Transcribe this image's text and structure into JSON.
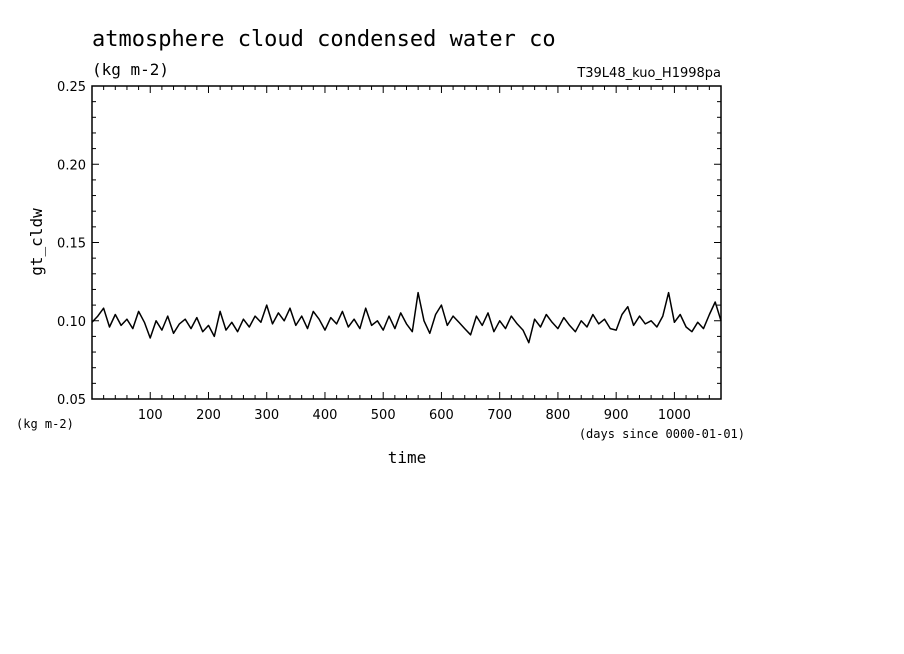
{
  "chart_data": {
    "type": "line",
    "title": "atmosphere cloud condensed water co",
    "subtitle": "(kg m-2)",
    "run_label": "T39L48_kuo_H1998pa",
    "xlabel": "time",
    "x_units": "(days since 0000-01-01)",
    "ylabel": "gt_cldw",
    "y_units": "(kg m-2)",
    "xlim": [
      0,
      1080
    ],
    "ylim": [
      0.05,
      0.25
    ],
    "x_ticks": [
      100,
      200,
      300,
      400,
      500,
      600,
      700,
      800,
      900,
      1000
    ],
    "x_tick_labels": [
      "100",
      "200",
      "300",
      "400",
      "500",
      "600",
      "700",
      "800",
      "900",
      "1000"
    ],
    "y_ticks": [
      0.05,
      0.1,
      0.15,
      0.2,
      0.25
    ],
    "y_tick_labels": [
      "0.05",
      "0.10",
      "0.15",
      "0.20",
      "0.25"
    ],
    "grid": false,
    "line_color": "#000000",
    "series": [
      {
        "x": [
          0,
          10,
          20,
          30,
          40,
          50,
          60,
          70,
          80,
          90,
          100,
          110,
          120,
          130,
          140,
          150,
          160,
          170,
          180,
          190,
          200,
          210,
          220,
          230,
          240,
          250,
          260,
          270,
          280,
          290,
          300,
          310,
          320,
          330,
          340,
          350,
          360,
          370,
          380,
          390,
          400,
          410,
          420,
          430,
          440,
          450,
          460,
          470,
          480,
          490,
          500,
          510,
          520,
          530,
          540,
          550,
          560,
          570,
          580,
          590,
          600,
          610,
          620,
          630,
          640,
          650,
          660,
          670,
          680,
          690,
          700,
          710,
          720,
          730,
          740,
          750,
          760,
          770,
          780,
          790,
          800,
          810,
          820,
          830,
          840,
          850,
          860,
          870,
          880,
          890,
          900,
          910,
          920,
          930,
          940,
          950,
          960,
          970,
          980,
          990,
          1000,
          1010,
          1020,
          1030,
          1040,
          1050,
          1060,
          1070,
          1080
        ],
        "values": [
          0.099,
          0.103,
          0.108,
          0.096,
          0.104,
          0.097,
          0.101,
          0.095,
          0.106,
          0.099,
          0.089,
          0.1,
          0.094,
          0.103,
          0.092,
          0.098,
          0.101,
          0.095,
          0.102,
          0.093,
          0.097,
          0.09,
          0.106,
          0.094,
          0.099,
          0.093,
          0.101,
          0.096,
          0.103,
          0.099,
          0.11,
          0.098,
          0.105,
          0.1,
          0.108,
          0.097,
          0.103,
          0.095,
          0.106,
          0.101,
          0.094,
          0.102,
          0.098,
          0.106,
          0.096,
          0.101,
          0.095,
          0.108,
          0.097,
          0.1,
          0.094,
          0.103,
          0.095,
          0.105,
          0.098,
          0.093,
          0.118,
          0.1,
          0.092,
          0.104,
          0.11,
          0.097,
          0.103,
          0.099,
          0.095,
          0.091,
          0.103,
          0.097,
          0.105,
          0.093,
          0.1,
          0.095,
          0.103,
          0.098,
          0.094,
          0.086,
          0.101,
          0.096,
          0.104,
          0.099,
          0.095,
          0.102,
          0.097,
          0.093,
          0.1,
          0.096,
          0.104,
          0.098,
          0.101,
          0.095,
          0.094,
          0.104,
          0.109,
          0.097,
          0.103,
          0.098,
          0.1,
          0.096,
          0.103,
          0.118,
          0.099,
          0.104,
          0.096,
          0.093,
          0.099,
          0.095,
          0.104,
          0.112,
          0.1
        ]
      }
    ]
  }
}
